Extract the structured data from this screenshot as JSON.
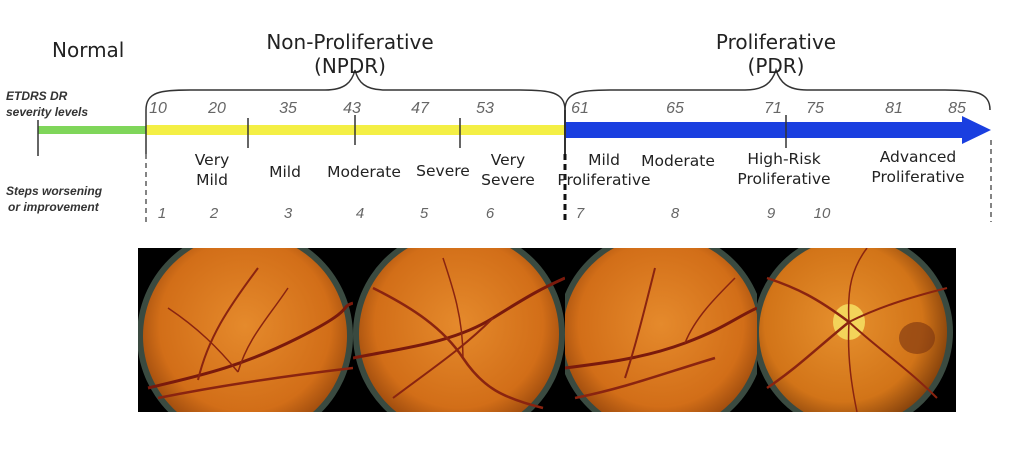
{
  "headers": {
    "normal": "Normal",
    "npdr_line1": "Non-Proliferative",
    "npdr_line2": "(NPDR)",
    "pdr_line1": "Proliferative",
    "pdr_line2": "(PDR)"
  },
  "side_labels": {
    "etdrs_line1": "ETDRS DR",
    "etdrs_line2": "severity levels",
    "steps_line1": "Steps worsening",
    "steps_line2": "or improvement"
  },
  "levels": [
    "10",
    "20",
    "35",
    "43",
    "47",
    "53",
    "61",
    "65",
    "71",
    "75",
    "81",
    "85"
  ],
  "steps": [
    "1",
    "2",
    "3",
    "4",
    "5",
    "6",
    "7",
    "8",
    "9",
    "10"
  ],
  "stages": {
    "very_mild_1": "Very",
    "very_mild_2": "Mild",
    "mild": "Mild",
    "moderate": "Moderate",
    "severe": "Severe",
    "very_severe_1": "Very",
    "very_severe_2": "Severe",
    "mild_prolif_1": "Mild",
    "mild_prolif_2": "Proliferative",
    "moderate_prolif": "Moderate",
    "high_risk_1": "High-Risk",
    "high_risk_2": "Proliferative",
    "advanced_1": "Advanced",
    "advanced_2": "Proliferative"
  },
  "colors": {
    "normal_bar": "#7fd65a",
    "npdr_bar": "#f4ef45",
    "pdr_bar": "#1a3fe0",
    "fundus": "#d8761c"
  },
  "photos": [
    "fundus-photo",
    "fundus-photo",
    "fundus-photo",
    "fundus-photo-optic-disc"
  ]
}
